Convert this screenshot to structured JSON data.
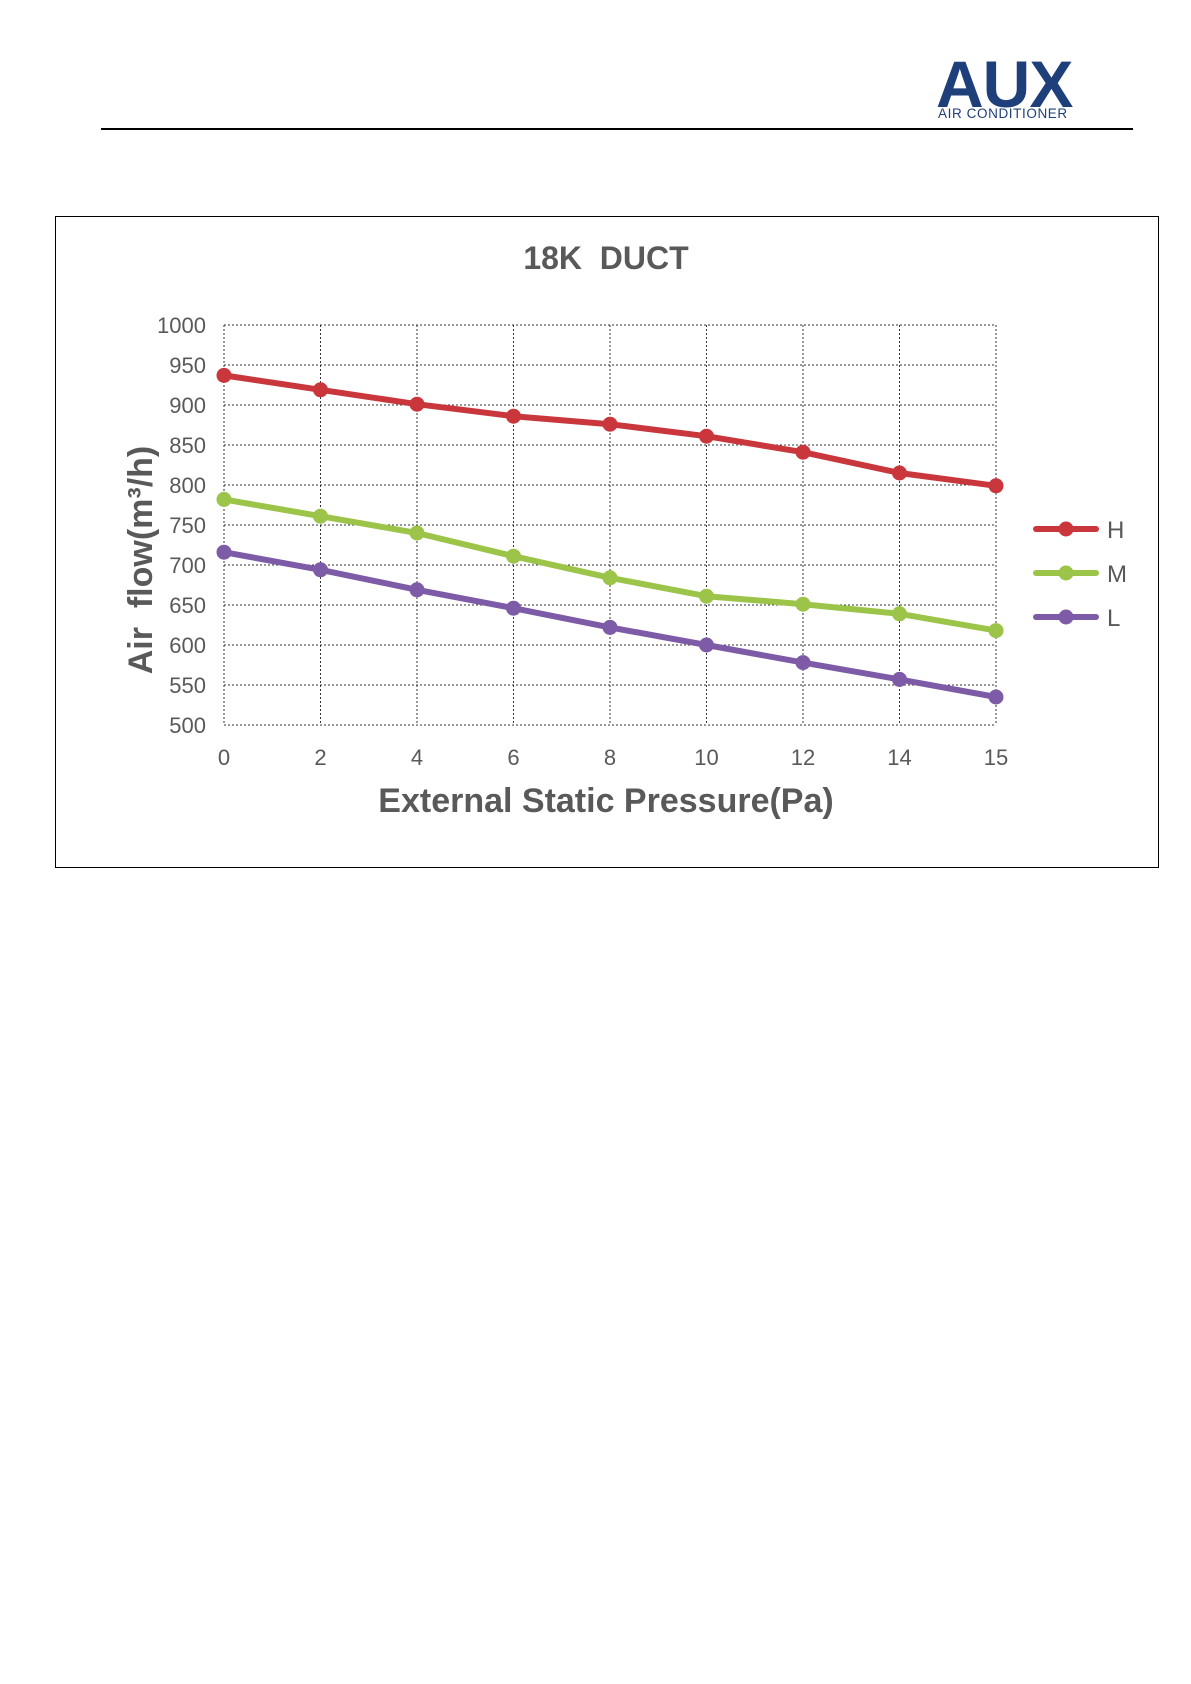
{
  "header": {
    "logo_text": "AUX",
    "logo_subtitle": "AIR CONDITIONER",
    "brand_color": "#1e3f7a"
  },
  "chart_data": {
    "type": "line",
    "title": "18K  DUCT",
    "xlabel": "External Static Pressure(Pa)",
    "ylabel": "Air  flow(m³/h)",
    "categories": [
      "0",
      "2",
      "4",
      "6",
      "8",
      "10",
      "12",
      "14",
      "15"
    ],
    "ylim": [
      500,
      1000
    ],
    "yticks": [
      500,
      550,
      600,
      650,
      700,
      750,
      800,
      850,
      900,
      950,
      1000
    ],
    "grid": true,
    "legend_position": "right",
    "series": [
      {
        "name": "H",
        "color": "#c9373c",
        "values": [
          937,
          919,
          901,
          886,
          876,
          861,
          841,
          815,
          799
        ]
      },
      {
        "name": "M",
        "color": "#9bc449",
        "values": [
          782,
          761,
          740,
          711,
          684,
          661,
          651,
          639,
          618
        ]
      },
      {
        "name": "L",
        "color": "#7d5ba6",
        "values": [
          716,
          694,
          669,
          646,
          622,
          600,
          578,
          557,
          535
        ]
      }
    ]
  }
}
